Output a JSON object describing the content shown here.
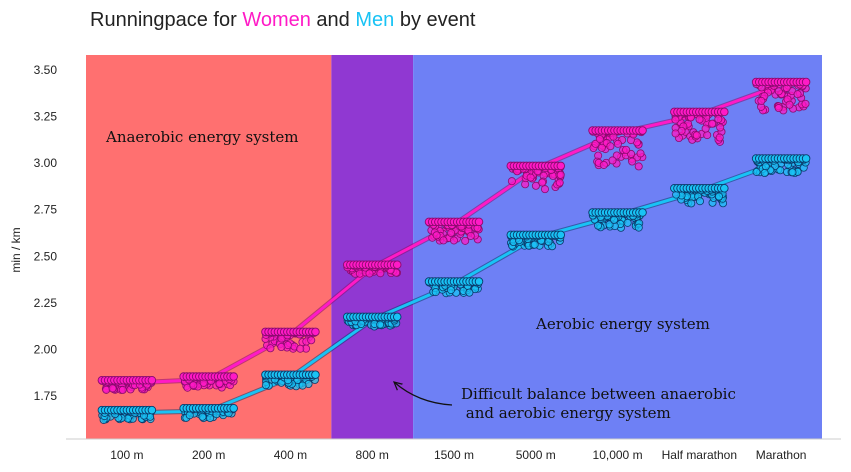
{
  "chart_data": {
    "type": "scatter",
    "title": {
      "prefix": "Runningpace for ",
      "women": "Women",
      "and": " and ",
      "men": "Men",
      "suffix": " by event"
    },
    "ylabel": "min / km",
    "ylim": [
      1.52,
      3.58
    ],
    "yticks": [
      1.75,
      2.0,
      2.25,
      2.5,
      2.75,
      3.0,
      3.25,
      3.5
    ],
    "ytick_labels": [
      "1.75",
      "2.00",
      "2.25",
      "2.50",
      "2.75",
      "3.00",
      "3.25",
      "3.50"
    ],
    "categories": [
      "100 m",
      "200 m",
      "400 m",
      "800 m",
      "1500 m",
      "5000 m",
      "10,000 m",
      "Half marathon",
      "Marathon"
    ],
    "series": [
      {
        "name": "Women",
        "color": "#ff1ac6",
        "dark": "#8a0b6e",
        "mean_values": [
          1.82,
          1.84,
          2.08,
          2.44,
          2.67,
          2.97,
          3.16,
          3.26,
          3.42
        ],
        "spread_below": [
          0.05,
          0.06,
          0.09,
          0.05,
          0.1,
          0.13,
          0.19,
          0.16,
          0.15
        ]
      },
      {
        "name": "Men",
        "color": "#19c3f5",
        "dark": "#0a3a6b",
        "mean_values": [
          1.66,
          1.67,
          1.85,
          2.16,
          2.35,
          2.6,
          2.72,
          2.85,
          3.01
        ],
        "spread_below": [
          0.05,
          0.05,
          0.06,
          0.05,
          0.06,
          0.06,
          0.08,
          0.08,
          0.08
        ]
      }
    ],
    "regions": [
      {
        "name": "anaerobic",
        "from_category": -0.5,
        "to_category": 2.5,
        "color": "#ff7070"
      },
      {
        "name": "mixed",
        "from_category": 2.5,
        "to_category": 3.5,
        "color": "#9038d2"
      },
      {
        "name": "aerobic",
        "from_category": 3.5,
        "to_category": 8.5,
        "color": "#6e80f5"
      }
    ],
    "annotations": {
      "anaerobic": "Anaerobic energy system",
      "aerobic": "Aerobic energy system",
      "balance_line1": "Difficult balance between anaerobic",
      "balance_line2": " and aerobic energy system"
    },
    "grid": false,
    "legend": "none"
  }
}
